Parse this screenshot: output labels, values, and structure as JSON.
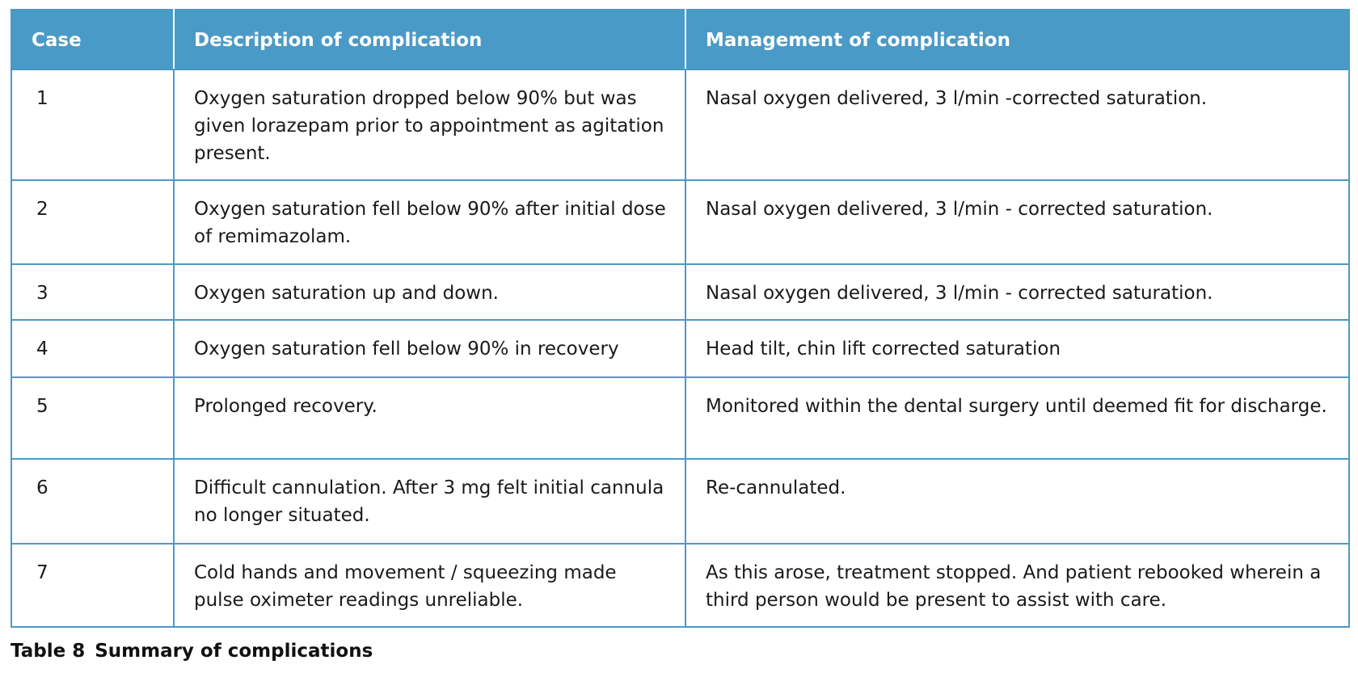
{
  "table": {
    "header": [
      "Case",
      "Description of complication",
      "Management of complication"
    ],
    "rows": [
      [
        "1",
        "Oxygen saturation dropped below 90% but was given lorazepam prior to appointment as agitation present.",
        "Nasal oxygen delivered, 3 l/min -corrected saturation."
      ],
      [
        "2",
        "Oxygen saturation fell below 90% after initial dose of remimazolam.",
        "Nasal oxygen delivered, 3 l/min - corrected saturation."
      ],
      [
        "3",
        "Oxygen saturation up and down.",
        "Nasal oxygen delivered, 3 l/min - corrected saturation."
      ],
      [
        "4",
        "Oxygen saturation fell below 90% in recovery",
        "Head tilt, chin lift corrected saturation"
      ],
      [
        "5",
        "Prolonged recovery.",
        "Monitored within the dental surgery until deemed fit for discharge."
      ],
      [
        "6",
        "Difficult cannulation. After 3 mg felt initial cannula no longer situated.",
        "Re-cannulated."
      ],
      [
        "7",
        "Cold hands and movement / squeezing made pulse oximeter readings unreliable.",
        "As this arose, treatment stopped. And patient rebooked wherein a third person would be present to assist with care."
      ]
    ]
  },
  "caption": {
    "label": "Table 8",
    "text": "Summary of complications"
  }
}
